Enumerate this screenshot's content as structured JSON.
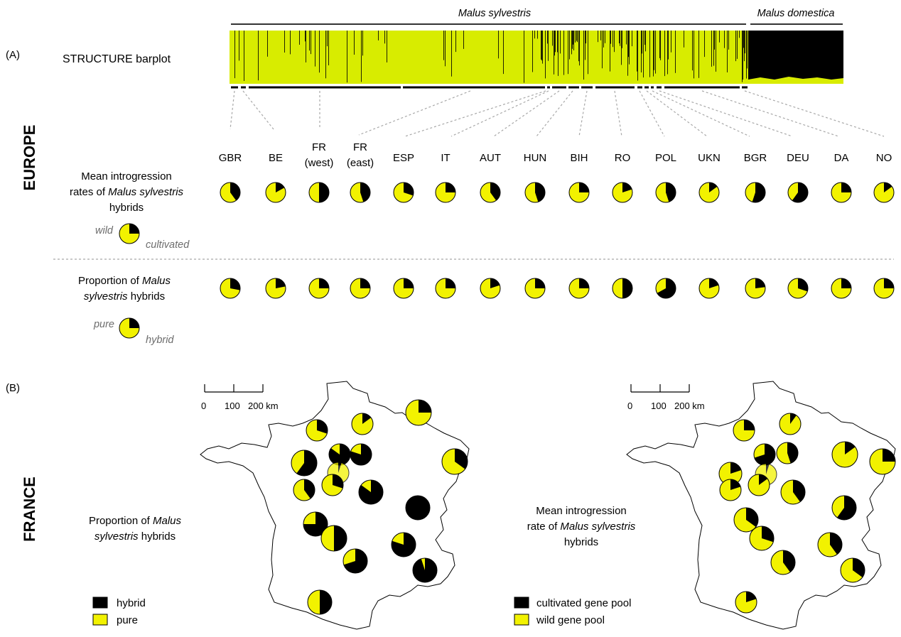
{
  "panel_a": {
    "label": "(A)",
    "barplot_label": "STRUCTURE barplot",
    "species_left": "Malus sylvestris",
    "species_right": "Malus domestica",
    "region_label": "EUROPE",
    "introgression_title": [
      "Mean introgression",
      "rates of ",
      "Malus sylvestris",
      "hybrids"
    ],
    "introgression_legend": {
      "wild": "wild",
      "cultivated": "cultivated"
    },
    "hybrid_title": [
      "Proportion of ",
      "Malus",
      "sylvestris",
      " hybrids"
    ],
    "hybrid_legend": {
      "pure": "pure",
      "hybrid": "hybrid"
    },
    "countries": [
      {
        "name": "GBR",
        "introgression_black": 0.4,
        "hybrid_black": 0.28
      },
      {
        "name": "BE",
        "introgression_black": 0.17,
        "hybrid_black": 0.22
      },
      {
        "name": "FR",
        "name2": "(west)",
        "introgression_black": 0.5,
        "hybrid_black": 0.25
      },
      {
        "name": "FR",
        "name2": "(east)",
        "introgression_black": 0.45,
        "hybrid_black": 0.25
      },
      {
        "name": "ESP",
        "introgression_black": 0.3,
        "hybrid_black": 0.25
      },
      {
        "name": "IT",
        "introgression_black": 0.25,
        "hybrid_black": 0.25
      },
      {
        "name": "AUT",
        "introgression_black": 0.4,
        "hybrid_black": 0.2
      },
      {
        "name": "HUN",
        "introgression_black": 0.45,
        "hybrid_black": 0.25
      },
      {
        "name": "BIH",
        "introgression_black": 0.25,
        "hybrid_black": 0.25
      },
      {
        "name": "RO",
        "introgression_black": 0.2,
        "hybrid_black": 0.5
      },
      {
        "name": "POL",
        "introgression_black": 0.45,
        "hybrid_black": 0.67
      },
      {
        "name": "UKN",
        "introgression_black": 0.15,
        "hybrid_black": 0.2
      },
      {
        "name": "BGR",
        "introgression_black": 0.55,
        "hybrid_black": 0.23
      },
      {
        "name": "DEU",
        "introgression_black": 0.6,
        "hybrid_black": 0.3
      },
      {
        "name": "DA",
        "introgression_black": 0.25,
        "hybrid_black": 0.25
      },
      {
        "name": "NO",
        "introgression_black": 0.15,
        "hybrid_black": 0.25
      }
    ]
  },
  "panel_b": {
    "label": "(B)",
    "region_label": "FRANCE",
    "scale_labels": [
      "0",
      "100",
      "200 km"
    ],
    "left_map": {
      "title": [
        "Proportion of ",
        "Malus",
        "sylvestris",
        " hybrids"
      ],
      "legend": [
        {
          "label": "hybrid",
          "color": "#000000"
        },
        {
          "label": "pure",
          "color": "#f2f200"
        }
      ]
    },
    "right_map": {
      "title": [
        "Mean introgression",
        "rate of ",
        "Malus sylvestris",
        "hybrids"
      ],
      "legend": [
        {
          "label": "cultivated gene pool",
          "color": "#000000"
        },
        {
          "label": "wild gene pool",
          "color": "#f2f200"
        }
      ]
    },
    "left_pies": [
      0.3,
      0.15,
      0.6,
      0.85,
      0.05,
      0.8,
      0.25,
      0.35,
      0.4,
      0.3,
      0.85,
      1.0,
      0.75,
      0.5,
      0.7,
      0.8,
      0.95,
      0.5
    ],
    "right_pies": [
      0.25,
      0.1,
      0.2,
      0.7,
      0.05,
      0.45,
      0.15,
      0.25,
      0.2,
      0.15,
      0.4,
      0.6,
      0.35,
      0.3,
      0.4,
      0.4,
      0.35,
      0.2
    ]
  },
  "colors": {
    "yellow": "#f2f200",
    "black": "#000000",
    "barplot_yellow": "#d8ec00",
    "dashed": "#a8a8a8",
    "grey_text": "#6d6d6d"
  }
}
